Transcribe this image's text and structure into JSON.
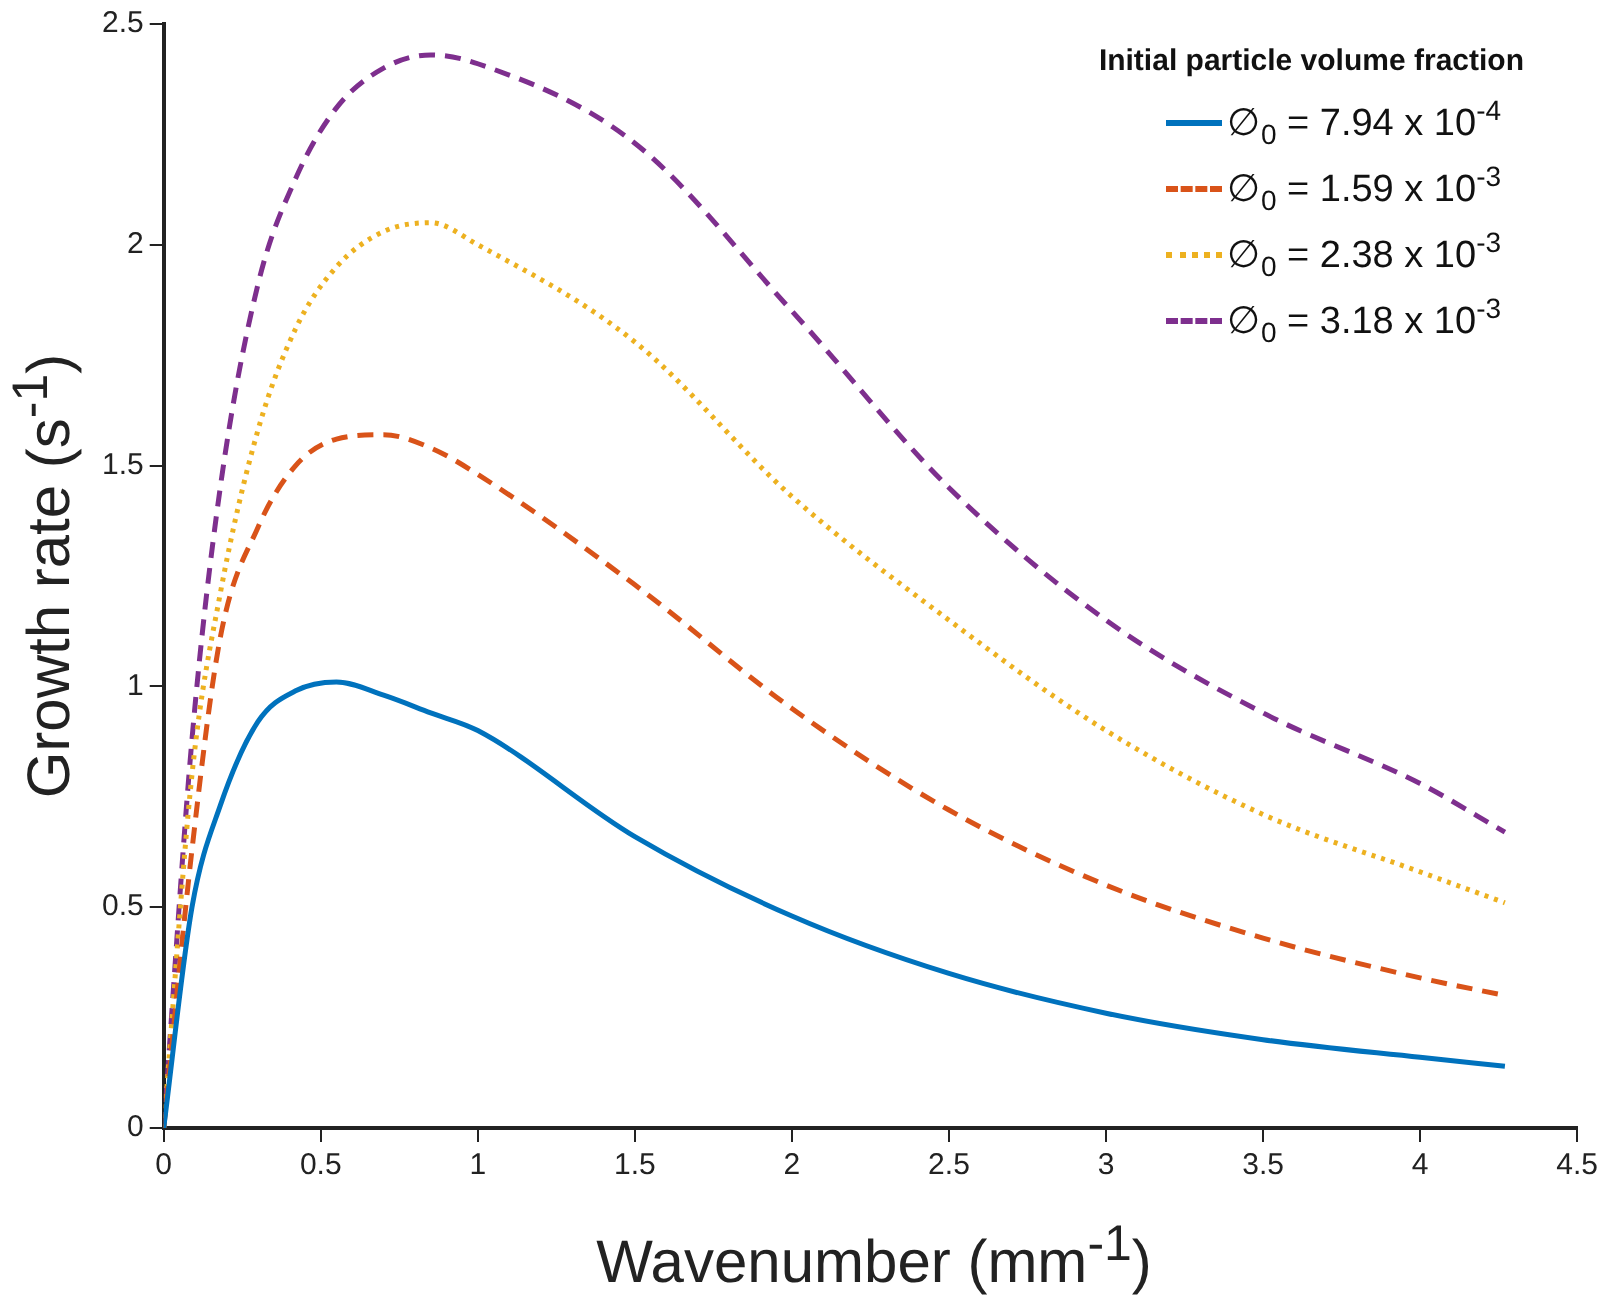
{
  "chart_data": {
    "type": "line",
    "xlabel": "Wavenumber (mm$^{-1}$)",
    "ylabel": "Growth rate (s$^{-1}$)",
    "legend_title": "Initial particle volume fraction",
    "x": [
      0,
      0.09,
      0.18,
      0.3,
      0.42,
      0.55,
      0.7,
      0.85,
      1,
      1.5,
      2,
      2.5,
      3,
      3.5,
      4,
      4.27
    ],
    "series": [
      {
        "name": "∅$_{0}$ = 7.94 x 10$^{-4}$",
        "color": "#0072bd",
        "line_style": "solid",
        "values": [
          0,
          0.5,
          0.73,
          0.92,
          0.99,
          1.01,
          0.98,
          0.94,
          0.9,
          0.66,
          0.48,
          0.35,
          0.26,
          0.2,
          0.16,
          0.14
        ]
      },
      {
        "name": "∅$_{0}$ = 1.59 x 10$^{-3}$",
        "color": "#d95319",
        "line_style": "dashed",
        "values": [
          0,
          0.63,
          1.11,
          1.36,
          1.5,
          1.56,
          1.57,
          1.54,
          1.48,
          1.23,
          0.95,
          0.72,
          0.55,
          0.43,
          0.34,
          0.3
        ]
      },
      {
        "name": "∅$_{0}$ = 2.38 x 10$^{-3}$",
        "color": "#edb120",
        "line_style": "dotted",
        "values": [
          0,
          0.8,
          1.21,
          1.58,
          1.81,
          1.95,
          2.03,
          2.05,
          2.0,
          1.78,
          1.43,
          1.15,
          0.9,
          0.71,
          0.58,
          0.51
        ]
      },
      {
        "name": "∅$_{0}$ = 3.18 x 10$^{-3}$",
        "color": "#7e2f8e",
        "line_style": "dashed",
        "values": [
          0,
          0.88,
          1.45,
          1.91,
          2.15,
          2.31,
          2.4,
          2.43,
          2.41,
          2.23,
          1.85,
          1.45,
          1.15,
          0.94,
          0.78,
          0.67
        ]
      }
    ],
    "xlim": [
      0,
      4.5
    ],
    "xticks": [
      0,
      0.5,
      1,
      1.5,
      2,
      2.5,
      3,
      3.5,
      4,
      4.5
    ],
    "ylim": [
      0,
      2.5
    ],
    "yticks": [
      0,
      0.5,
      1,
      1.5,
      2,
      2.5
    ],
    "grid": false,
    "legend": "top right",
    "marker": "none"
  }
}
